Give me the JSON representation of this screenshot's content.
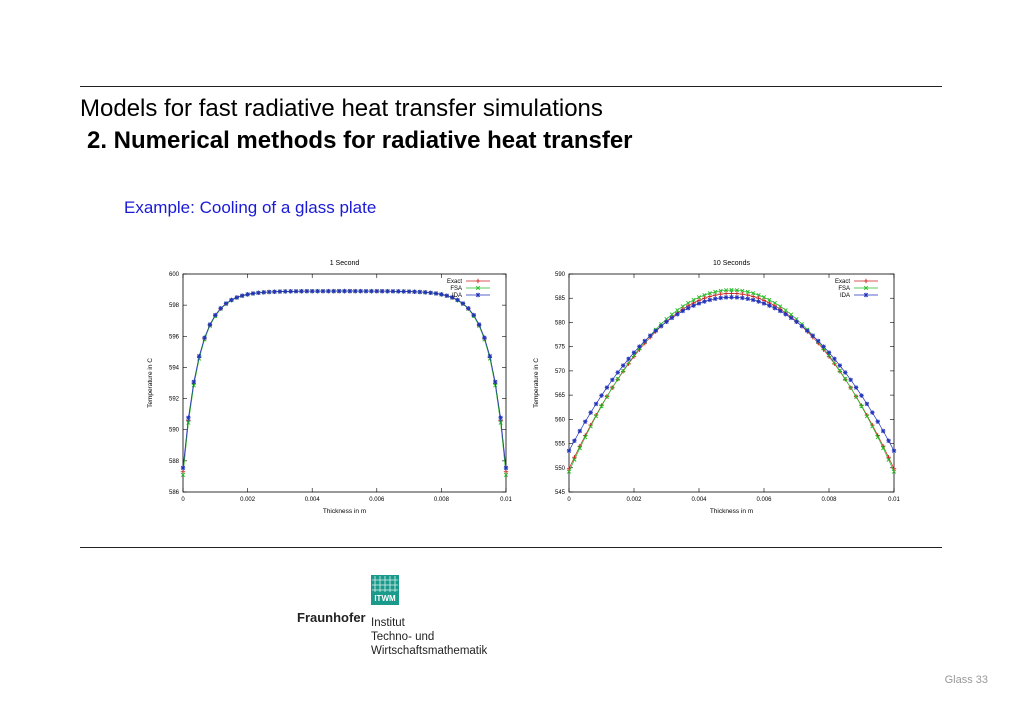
{
  "header": {
    "title": "Models for fast radiative heat transfer simulations",
    "subtitle": "2. Numerical methods for radiative heat transfer",
    "example": "Example: Cooling of a glass plate"
  },
  "footer": {
    "page_label": "Glass 33"
  },
  "logo": {
    "box_text": "ITWM",
    "name": "Fraunhofer",
    "lines": [
      "Institut",
      "Techno- und",
      "Wirtschaftsmathematik"
    ]
  },
  "chart_data": [
    {
      "type": "line",
      "title": "1 Second",
      "xlabel": "Thickness in m",
      "ylabel": "Temperature in C",
      "xlim": [
        0,
        0.01
      ],
      "ylim": [
        586,
        600
      ],
      "xticks": [
        "0",
        "0.002",
        "0.004",
        "0.006",
        "0.008",
        "0.01"
      ],
      "xtick_values": [
        0,
        0.002,
        0.004,
        0.006,
        0.008,
        0.01
      ],
      "yticks": [
        "600",
        "598",
        "596",
        "594",
        "592",
        "590",
        "588",
        "586"
      ],
      "ytick_values": [
        600,
        598,
        596,
        594,
        592,
        590,
        588,
        586
      ],
      "legend_position": "top-right",
      "grid": false,
      "curve": {
        "kind": "plateau",
        "edge": 587.3,
        "plateau": 598.9,
        "decay": 0.0005
      },
      "series": [
        {
          "name": "Exact",
          "color": "#cc2222",
          "marker": "plus",
          "offset": 0
        },
        {
          "name": "FSA",
          "color": "#22bb22",
          "marker": "x",
          "offset": -0.2
        },
        {
          "name": "IDA",
          "color": "#2233bb",
          "marker": "star",
          "offset": 0.25
        }
      ]
    },
    {
      "type": "line",
      "title": "10 Seconds",
      "xlabel": "Thickness in m",
      "ylabel": "Temperature in C",
      "xlim": [
        0,
        0.01
      ],
      "ylim": [
        545,
        590
      ],
      "xticks": [
        "0",
        "0.002",
        "0.004",
        "0.006",
        "0.008",
        "0.01"
      ],
      "xtick_values": [
        0,
        0.002,
        0.004,
        0.006,
        0.008,
        0.01
      ],
      "yticks": [
        "590",
        "585",
        "580",
        "575",
        "570",
        "565",
        "560",
        "555",
        "550",
        "545"
      ],
      "ytick_values": [
        590,
        585,
        580,
        575,
        570,
        565,
        560,
        555,
        550,
        545
      ],
      "legend_position": "top-right",
      "grid": false,
      "curve": {
        "kind": "parabola"
      },
      "series": [
        {
          "name": "Exact",
          "color": "#cc2222",
          "marker": "plus",
          "edge": 549.8,
          "peak": 586.0
        },
        {
          "name": "FSA",
          "color": "#22bb22",
          "marker": "x",
          "edge": 549.2,
          "peak": 586.7
        },
        {
          "name": "IDA",
          "color": "#2233bb",
          "marker": "star",
          "edge": 553.5,
          "peak": 585.2
        }
      ]
    }
  ]
}
